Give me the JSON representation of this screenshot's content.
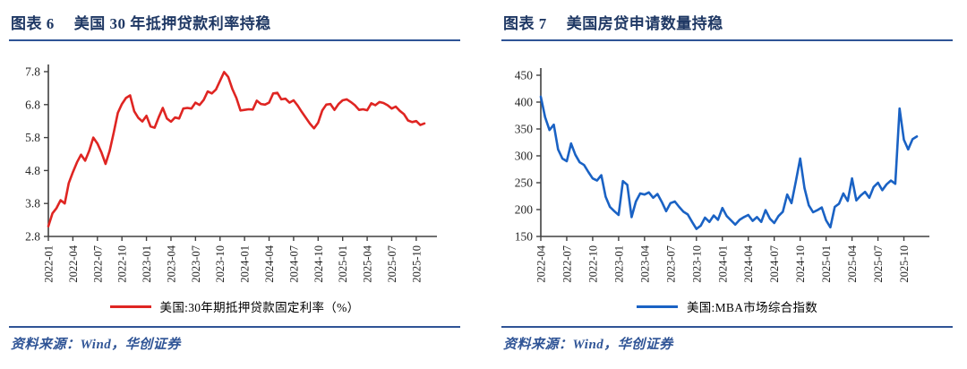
{
  "page": {
    "background": "#ffffff"
  },
  "colors": {
    "title_navy": "#1f3864",
    "rule_blue": "#2f5496",
    "source_text_blue": "#2f5496",
    "red_line": "#df2522",
    "blue_line": "#1a62c4",
    "axis": "#404040",
    "tick_label": "#262626"
  },
  "sources": {
    "left": "资料来源：Wind，华创证券",
    "right": "资料来源：Wind，华创证券"
  },
  "chart_data": [
    {
      "type": "line",
      "figure_label": "图表 6",
      "title": "美国 30 年抵押贷款利率持稳",
      "xlabel": "",
      "ylabel": "",
      "grid": false,
      "legend_position": "bottom",
      "x_start": "2022-01",
      "months_per_point": 0.5,
      "x_ticks": [
        "2022-01",
        "2022-04",
        "2022-07",
        "2022-10",
        "2023-01",
        "2023-04",
        "2023-07",
        "2023-10",
        "2024-01",
        "2024-04",
        "2024-07",
        "2024-10",
        "2025-01",
        "2025-04",
        "2025-07",
        "2025-10"
      ],
      "y_ticks": [
        "2.8",
        "3.8",
        "4.8",
        "5.8",
        "6.8",
        "7.8"
      ],
      "ylim": [
        2.8,
        7.8
      ],
      "series": [
        {
          "name": "美国:30年期抵押贷款固定利率（%）",
          "color": "#df2522",
          "values": [
            3.11,
            3.5,
            3.66,
            3.9,
            3.8,
            4.42,
            4.75,
            5.05,
            5.28,
            5.1,
            5.4,
            5.8,
            5.62,
            5.35,
            5.0,
            5.4,
            5.95,
            6.55,
            6.82,
            7.0,
            7.08,
            6.6,
            6.4,
            6.29,
            6.46,
            6.14,
            6.1,
            6.42,
            6.7,
            6.38,
            6.28,
            6.41,
            6.38,
            6.68,
            6.7,
            6.68,
            6.86,
            6.79,
            6.94,
            7.2,
            7.14,
            7.26,
            7.52,
            7.79,
            7.64,
            7.28,
            7.0,
            6.62,
            6.64,
            6.66,
            6.65,
            6.92,
            6.82,
            6.8,
            6.86,
            7.14,
            7.16,
            6.96,
            6.98,
            6.86,
            6.93,
            6.77,
            6.58,
            6.4,
            6.22,
            6.08,
            6.25,
            6.62,
            6.8,
            6.82,
            6.64,
            6.82,
            6.93,
            6.96,
            6.88,
            6.78,
            6.64,
            6.66,
            6.63,
            6.84,
            6.78,
            6.88,
            6.85,
            6.78,
            6.68,
            6.74,
            6.61,
            6.51,
            6.32,
            6.27,
            6.3,
            6.18,
            6.23
          ]
        }
      ]
    },
    {
      "type": "line",
      "figure_label": "图表 7",
      "title": "美国房贷申请数量持稳",
      "xlabel": "",
      "ylabel": "",
      "grid": false,
      "legend_position": "bottom",
      "x_start": "2022-04",
      "months_per_point": 0.5,
      "x_ticks": [
        "2022-04",
        "2022-07",
        "2022-10",
        "2023-01",
        "2023-04",
        "2023-07",
        "2023-10",
        "2024-01",
        "2024-04",
        "2024-07",
        "2024-10",
        "2025-01",
        "2025-04",
        "2025-07",
        "2025-10"
      ],
      "y_ticks": [
        "150",
        "200",
        "250",
        "300",
        "350",
        "400",
        "450"
      ],
      "ylim": [
        150,
        450
      ],
      "series": [
        {
          "name": "美国:MBA市场综合指数",
          "color": "#1a62c4",
          "values": [
            410,
            372,
            348,
            358,
            312,
            295,
            290,
            323,
            302,
            288,
            283,
            270,
            258,
            254,
            264,
            224,
            205,
            197,
            190,
            253,
            246,
            186,
            215,
            230,
            228,
            232,
            222,
            229,
            214,
            197,
            212,
            215,
            205,
            196,
            191,
            177,
            164,
            170,
            185,
            177,
            189,
            181,
            203,
            188,
            180,
            172,
            181,
            186,
            190,
            179,
            186,
            177,
            199,
            183,
            175,
            188,
            196,
            228,
            212,
            252,
            295,
            240,
            208,
            195,
            199,
            204,
            180,
            167,
            205,
            211,
            230,
            216,
            258,
            217,
            226,
            233,
            222,
            242,
            250,
            236,
            247,
            254,
            248,
            388,
            330,
            312,
            331,
            336
          ]
        }
      ]
    }
  ]
}
